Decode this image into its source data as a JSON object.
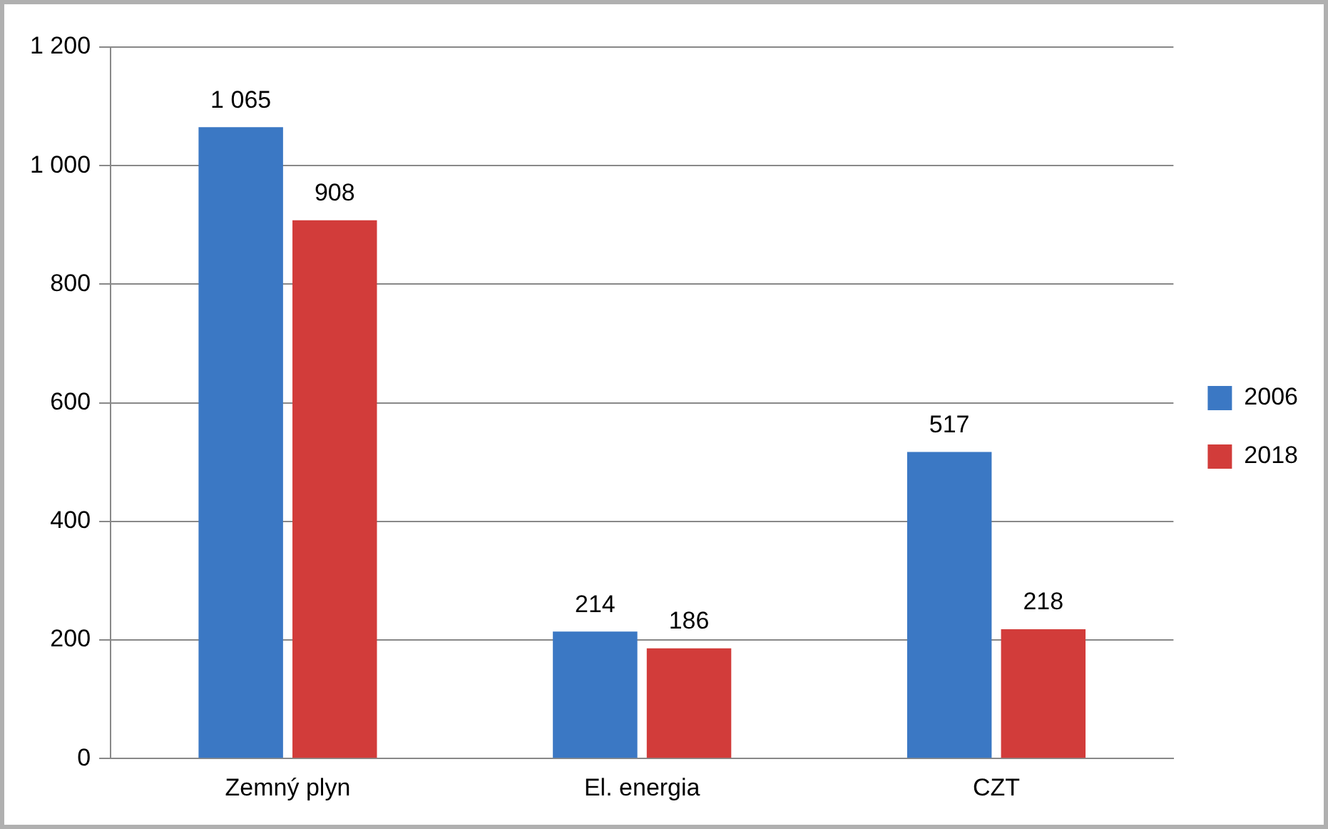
{
  "chart_data": {
    "type": "bar",
    "categories": [
      "Zemný plyn",
      "El. energia",
      "CZT"
    ],
    "series": [
      {
        "name": "2006",
        "color": "#3b78c4",
        "values": [
          1065,
          214,
          517
        ],
        "value_labels": [
          "1 065",
          "214",
          "517"
        ]
      },
      {
        "name": "2018",
        "color": "#d23c3a",
        "values": [
          908,
          186,
          218
        ],
        "value_labels": [
          "908",
          "186",
          "218"
        ]
      }
    ],
    "ylim": [
      0,
      1200
    ],
    "yticks": [
      0,
      200,
      400,
      600,
      800,
      {
        "value": 1000,
        "label": "1 000"
      },
      {
        "value": 1200,
        "label": "1 200"
      }
    ],
    "grid": "y",
    "legend": "right"
  }
}
